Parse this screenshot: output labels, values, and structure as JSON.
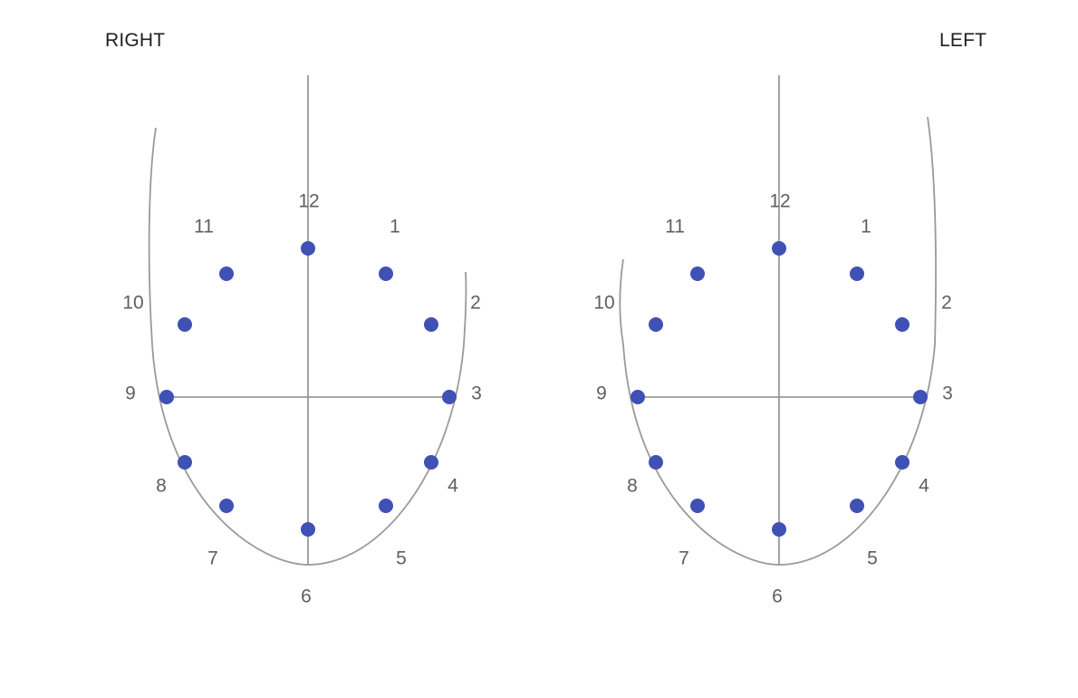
{
  "breasts": [
    {
      "id": "right",
      "title": "RIGHT",
      "clock_labels": [
        "1",
        "2",
        "3",
        "4",
        "5",
        "6",
        "7",
        "8",
        "9",
        "10",
        "11",
        "12"
      ]
    },
    {
      "id": "left",
      "title": "LEFT",
      "clock_labels": [
        "1",
        "2",
        "3",
        "4",
        "5",
        "6",
        "7",
        "8",
        "9",
        "10",
        "11",
        "12"
      ]
    }
  ],
  "colors": {
    "point": "#3f51b5",
    "line": "#9a9a9a",
    "label": "#5f5f5f",
    "title": "#1f1f1f"
  }
}
